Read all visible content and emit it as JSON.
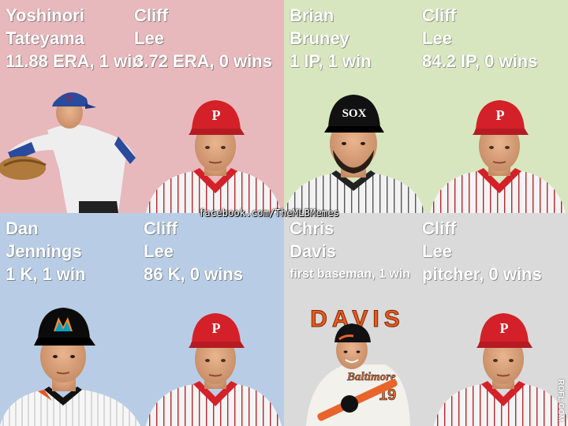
{
  "colors": {
    "panel_top_left": "#e7b9bc",
    "panel_top_right": "#d7e6bf",
    "panel_bottom_left": "#b8cde5",
    "panel_bottom_right": "#dadada",
    "phillies_red": "#d42028",
    "pinstripe": "#b8262d"
  },
  "panels": [
    {
      "left": {
        "first": "Yoshinori",
        "last": "Tateyama",
        "stat": "11.88 ERA, 1 win"
      },
      "right": {
        "first": "Cliff",
        "last": "Lee",
        "stat": "3.72 ERA, 0 wins"
      }
    },
    {
      "left": {
        "first": "Brian",
        "last": "Bruney",
        "stat": "1 IP, 1 win"
      },
      "right": {
        "first": "Cliff",
        "last": "Lee",
        "stat": "84.2 IP, 0 wins"
      }
    },
    {
      "left": {
        "first": "Dan",
        "last": "Jennings",
        "stat": "1 K, 1 win"
      },
      "right": {
        "first": "Cliff",
        "last": "Lee",
        "stat": "86 K, 0 wins"
      }
    },
    {
      "left": {
        "first": "Chris",
        "last": "Davis",
        "stat": "first baseman, 1 win"
      },
      "right": {
        "first": "Cliff",
        "last": "Lee",
        "stat": "pitcher, 0 wins"
      }
    }
  ],
  "logo_text": {
    "davis_banner": "DAVIS",
    "orioles_script": "Baltimore",
    "jersey_number": "19",
    "phillies_cap": "P"
  },
  "watermark": "facebook.com/TheMLBMemes",
  "site_mark": "ROFL.COM"
}
